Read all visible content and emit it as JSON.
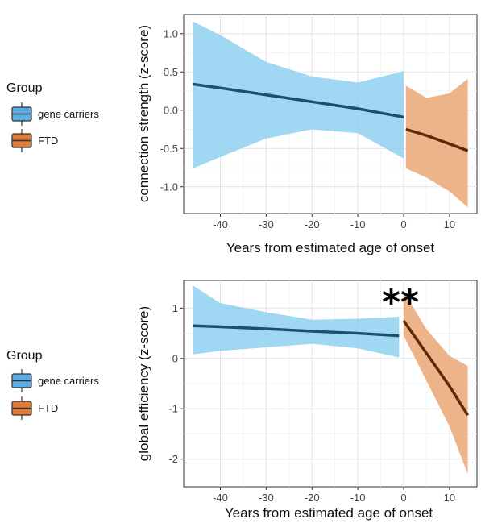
{
  "chart_data": [
    {
      "type": "line",
      "title": "",
      "xlabel": "Years from estimated age of onset",
      "ylabel": "connection strength (z-score)",
      "xlim": [
        -48,
        16
      ],
      "ylim": [
        -1.35,
        1.25
      ],
      "xticks": [
        -40,
        -30,
        -20,
        -10,
        0,
        10
      ],
      "yticks": [
        -1.0,
        -0.5,
        0.0,
        0.5,
        1.0
      ],
      "ytick_labels": [
        "-1.0",
        "-0.5",
        "0.0",
        "0.5",
        "1.0"
      ],
      "grid": true,
      "legend": {
        "title": "Group",
        "placement": "left",
        "entries": [
          "gene carriers",
          "FTD"
        ]
      },
      "annotation": "",
      "series": [
        {
          "name": "gene carriers",
          "color": "#1f4e6e",
          "band_color": "#8fd0f0",
          "x": [
            -46,
            -40,
            -30,
            -20,
            -10,
            0
          ],
          "y": [
            0.34,
            0.29,
            0.2,
            0.11,
            0.02,
            -0.09
          ],
          "lower": [
            -0.76,
            -0.61,
            -0.37,
            -0.25,
            -0.3,
            -0.63
          ],
          "upper": [
            1.16,
            0.98,
            0.63,
            0.44,
            0.36,
            0.51
          ]
        },
        {
          "name": "FTD",
          "color": "#5a2a0a",
          "band_color": "#eba774",
          "x": [
            0.5,
            5,
            10,
            14
          ],
          "y": [
            -0.25,
            -0.33,
            -0.44,
            -0.53
          ],
          "lower": [
            -0.76,
            -0.88,
            -1.06,
            -1.27
          ],
          "upper": [
            0.32,
            0.16,
            0.22,
            0.41
          ]
        }
      ]
    },
    {
      "type": "line",
      "title": "",
      "xlabel": "Years from estimated age of onset",
      "ylabel": "global efficiency (z-score)",
      "xlim": [
        -48,
        16
      ],
      "ylim": [
        -2.55,
        1.55
      ],
      "xticks": [
        -40,
        -30,
        -20,
        -10,
        0,
        10
      ],
      "yticks": [
        -2,
        -1,
        0,
        1
      ],
      "ytick_labels": [
        "-2",
        "-1",
        "0",
        "1"
      ],
      "grid": true,
      "legend": {
        "title": "Group",
        "placement": "left",
        "entries": [
          "gene carriers",
          "FTD"
        ]
      },
      "annotation": "**",
      "series": [
        {
          "name": "gene carriers",
          "color": "#1f4e6e",
          "band_color": "#8fd0f0",
          "x": [
            -46,
            -40,
            -30,
            -20,
            -10,
            -1
          ],
          "y": [
            0.65,
            0.63,
            0.59,
            0.54,
            0.5,
            0.45
          ],
          "lower": [
            0.08,
            0.15,
            0.22,
            0.29,
            0.2,
            0.02
          ],
          "upper": [
            1.45,
            1.1,
            0.92,
            0.77,
            0.79,
            0.83
          ]
        },
        {
          "name": "FTD",
          "color": "#5a2a0a",
          "band_color": "#eba774",
          "x": [
            0,
            5,
            10,
            14
          ],
          "y": [
            0.75,
            0.1,
            -0.55,
            -1.13
          ],
          "lower": [
            0.45,
            -0.45,
            -1.35,
            -2.3
          ],
          "upper": [
            1.32,
            0.58,
            0.05,
            -0.15
          ]
        }
      ]
    }
  ]
}
